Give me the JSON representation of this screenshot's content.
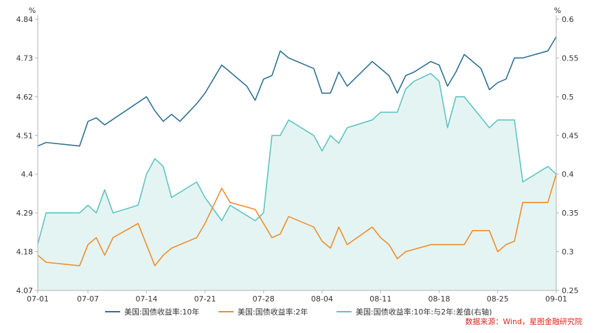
{
  "chart_data": {
    "type": "line",
    "left_axis": {
      "unit": "%",
      "ticks": [
        "4.84",
        "4.73",
        "4.62",
        "4.51",
        "4.4",
        "4.29",
        "4.18",
        "4.07"
      ],
      "ylim": [
        4.07,
        4.84
      ]
    },
    "right_axis": {
      "unit": "%",
      "ticks": [
        "0.6",
        "0.55",
        "0.5",
        "0.45",
        "0.4",
        "0.35",
        "0.3",
        "0.25"
      ],
      "ylim": [
        0.25,
        0.6
      ]
    },
    "x_ticks": [
      "07-01",
      "07-07",
      "07-14",
      "07-21",
      "07-28",
      "08-04",
      "08-11",
      "08-18",
      "08-25",
      "09-01"
    ],
    "x_domain": [
      0,
      62
    ],
    "x_tick_positions": [
      0,
      6,
      13,
      20,
      27,
      34,
      41,
      48,
      55,
      62
    ],
    "series": [
      {
        "name": "美国:国债收益率:10年",
        "axis": "left",
        "color": "#2b6f91",
        "style": "line",
        "x": [
          0,
          1,
          5,
          6,
          7,
          8,
          13,
          14,
          15,
          16,
          17,
          19,
          20,
          22,
          23,
          25,
          26,
          27,
          28,
          29,
          30,
          33,
          34,
          35,
          36,
          37,
          40,
          42,
          43,
          44,
          45,
          47,
          48,
          49,
          50,
          51,
          53,
          54,
          55,
          56,
          57,
          58,
          61,
          62
        ],
        "values": [
          4.48,
          4.49,
          4.48,
          4.55,
          4.56,
          4.54,
          4.62,
          4.58,
          4.55,
          4.57,
          4.55,
          4.6,
          4.63,
          4.71,
          4.69,
          4.65,
          4.61,
          4.67,
          4.68,
          4.75,
          4.73,
          4.7,
          4.63,
          4.63,
          4.69,
          4.65,
          4.72,
          4.68,
          4.63,
          4.68,
          4.69,
          4.72,
          4.71,
          4.65,
          4.69,
          4.74,
          4.7,
          4.64,
          4.66,
          4.67,
          4.73,
          4.73,
          4.75,
          4.79
        ]
      },
      {
        "name": "美国:国债收益率:2年",
        "axis": "left",
        "color": "#f08c28",
        "style": "line",
        "x": [
          0,
          1,
          5,
          6,
          7,
          8,
          9,
          12,
          13,
          14,
          15,
          16,
          19,
          20,
          22,
          23,
          26,
          27,
          28,
          29,
          30,
          33,
          34,
          35,
          36,
          37,
          40,
          41,
          42,
          43,
          44,
          47,
          48,
          51,
          52,
          54,
          55,
          56,
          57,
          58,
          61,
          62
        ],
        "values": [
          4.17,
          4.15,
          4.14,
          4.2,
          4.22,
          4.17,
          4.22,
          4.26,
          4.2,
          4.14,
          4.17,
          4.19,
          4.22,
          4.26,
          4.36,
          4.32,
          4.3,
          4.26,
          4.22,
          4.23,
          4.28,
          4.25,
          4.21,
          4.19,
          4.25,
          4.2,
          4.25,
          4.22,
          4.2,
          4.16,
          4.18,
          4.2,
          4.2,
          4.2,
          4.24,
          4.24,
          4.18,
          4.2,
          4.21,
          4.32,
          4.32,
          4.4
        ]
      },
      {
        "name": "美国:国债收益率:10年:与2年:差值(右轴)",
        "axis": "right",
        "color": "#5bc3c3",
        "fill": "#e4f4f3",
        "style": "area",
        "x": [
          0,
          1,
          5,
          6,
          7,
          8,
          9,
          12,
          13,
          14,
          15,
          16,
          19,
          20,
          22,
          23,
          26,
          27,
          28,
          29,
          30,
          33,
          34,
          35,
          36,
          37,
          40,
          41,
          43,
          44,
          45,
          47,
          48,
          49,
          50,
          51,
          54,
          55,
          57,
          58,
          61,
          62
        ],
        "values": [
          0.31,
          0.35,
          0.35,
          0.36,
          0.35,
          0.38,
          0.35,
          0.36,
          0.4,
          0.42,
          0.41,
          0.37,
          0.39,
          0.37,
          0.34,
          0.36,
          0.34,
          0.35,
          0.45,
          0.45,
          0.47,
          0.45,
          0.43,
          0.45,
          0.44,
          0.46,
          0.47,
          0.48,
          0.48,
          0.51,
          0.52,
          0.53,
          0.52,
          0.46,
          0.5,
          0.5,
          0.46,
          0.47,
          0.47,
          0.39,
          0.41,
          0.4
        ]
      }
    ],
    "grid": false,
    "legend_position": "bottom"
  },
  "source_text": "数据来源：Wind，星图金融研究院",
  "colors": {
    "axis": "#b0b0b0",
    "text": "#333333",
    "source": "#e0231c"
  }
}
